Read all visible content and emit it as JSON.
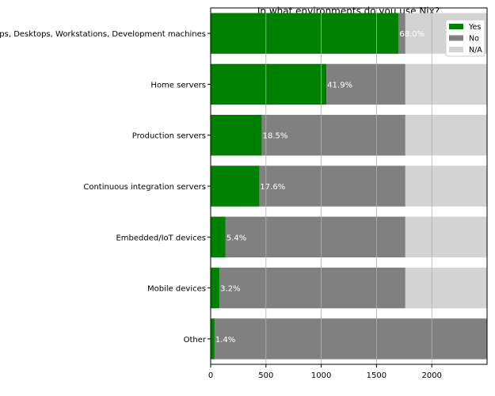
{
  "chart_data": {
    "type": "bar",
    "orientation": "horizontal",
    "stacked": true,
    "title": "In what environments do you use Nix?",
    "xlabel": "",
    "ylabel": "",
    "xlim": [
      0,
      2500
    ],
    "xticks": [
      0,
      500,
      1000,
      1500,
      2000
    ],
    "grid": "x",
    "legend_position": "top-right",
    "categories": [
      "Laptops, Desktops, Workstations, Development machines",
      "Home servers",
      "Production servers",
      "Continuous integration servers",
      "Embedded/IoT devices",
      "Mobile devices",
      "Other"
    ],
    "series": [
      {
        "name": "Yes",
        "color": "#008000",
        "values": [
          1700,
          1048,
          463,
          440,
          135,
          80,
          35
        ]
      },
      {
        "name": "No",
        "color": "#808080",
        "values": [
          61,
          713,
          1298,
          1321,
          1626,
          1681,
          2465
        ]
      },
      {
        "name": "N/A",
        "color": "#d3d3d3",
        "values": [
          739,
          739,
          739,
          739,
          739,
          739,
          0
        ]
      }
    ],
    "data_labels": [
      "68.0%",
      "41.9%",
      "18.5%",
      "17.6%",
      "5.4%",
      "3.2%",
      "1.4%"
    ]
  }
}
